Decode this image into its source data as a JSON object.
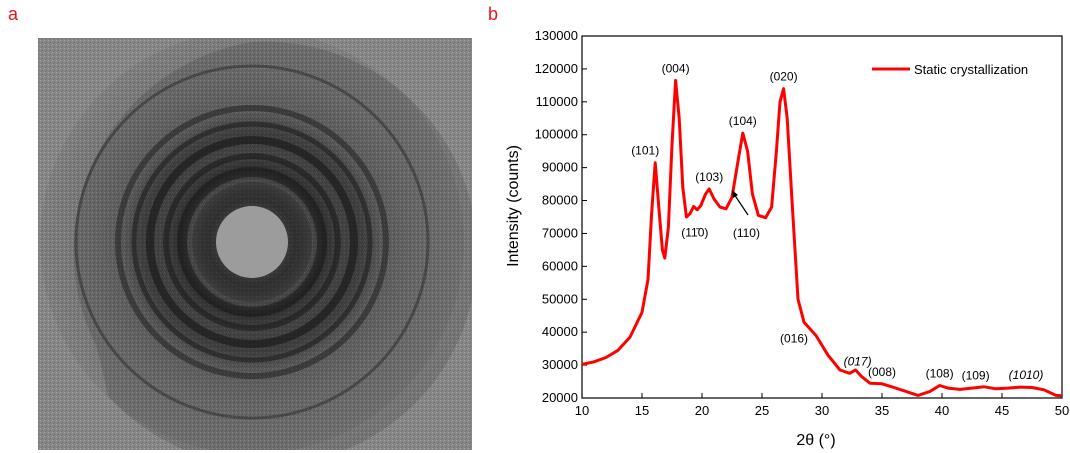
{
  "panels": {
    "a": "a",
    "b": "b"
  },
  "colors": {
    "accent": "#e8141c",
    "series": "#ff0000"
  },
  "chart_data": {
    "type": "line",
    "xlabel": "2θ (°)",
    "ylabel": "Intensity (counts)",
    "xlim": [
      10,
      50
    ],
    "ylim": [
      20000,
      130000
    ],
    "x_ticks": [
      10,
      15,
      20,
      25,
      30,
      35,
      40,
      45,
      50
    ],
    "y_ticks": [
      20000,
      30000,
      40000,
      50000,
      60000,
      70000,
      80000,
      90000,
      100000,
      110000,
      120000,
      130000
    ],
    "grid": false,
    "legend_position": "top-right",
    "series": [
      {
        "name": "Static crystallization",
        "points": [
          [
            10,
            30200
          ],
          [
            11,
            31000
          ],
          [
            12,
            32300
          ],
          [
            13,
            34500
          ],
          [
            14,
            38500
          ],
          [
            15,
            46000
          ],
          [
            15.5,
            56000
          ],
          [
            15.8,
            76000
          ],
          [
            16.1,
            91500
          ],
          [
            16.4,
            78000
          ],
          [
            16.7,
            65000
          ],
          [
            16.9,
            62500
          ],
          [
            17.2,
            72000
          ],
          [
            17.5,
            97000
          ],
          [
            17.8,
            116500
          ],
          [
            18.1,
            105000
          ],
          [
            18.4,
            84000
          ],
          [
            18.7,
            75000
          ],
          [
            19.0,
            76000
          ],
          [
            19.3,
            78200
          ],
          [
            19.6,
            77200
          ],
          [
            19.9,
            78500
          ],
          [
            20.3,
            82000
          ],
          [
            20.6,
            83500
          ],
          [
            21.0,
            80500
          ],
          [
            21.5,
            78000
          ],
          [
            22.0,
            77500
          ],
          [
            22.5,
            81000
          ],
          [
            23.0,
            92000
          ],
          [
            23.4,
            100500
          ],
          [
            23.8,
            95000
          ],
          [
            24.2,
            82000
          ],
          [
            24.7,
            75500
          ],
          [
            25.3,
            74800
          ],
          [
            25.8,
            78000
          ],
          [
            26.2,
            95000
          ],
          [
            26.5,
            110000
          ],
          [
            26.8,
            114000
          ],
          [
            27.1,
            105000
          ],
          [
            27.5,
            80000
          ],
          [
            28.0,
            50000
          ],
          [
            28.5,
            43000
          ],
          [
            29.5,
            39000
          ],
          [
            30.5,
            33000
          ],
          [
            31.5,
            28500
          ],
          [
            32.3,
            27500
          ],
          [
            32.8,
            28500
          ],
          [
            33.3,
            26500
          ],
          [
            34.0,
            24500
          ],
          [
            35.0,
            24300
          ],
          [
            36.0,
            23200
          ],
          [
            37.0,
            22000
          ],
          [
            38.0,
            20800
          ],
          [
            39.0,
            22000
          ],
          [
            39.8,
            23800
          ],
          [
            40.5,
            23000
          ],
          [
            41.5,
            22600
          ],
          [
            42.5,
            23000
          ],
          [
            43.5,
            23400
          ],
          [
            44.5,
            22800
          ],
          [
            45.5,
            23000
          ],
          [
            46.5,
            23300
          ],
          [
            47.5,
            23200
          ],
          [
            48.5,
            22500
          ],
          [
            49.5,
            20800
          ],
          [
            50,
            20700
          ]
        ]
      }
    ],
    "annotations": [
      {
        "text": "(101)",
        "x": 16.1,
        "y": 91500,
        "style": "normal"
      },
      {
        "text": "(004)",
        "x": 17.8,
        "y": 116500,
        "style": "normal"
      },
      {
        "text": "(103)",
        "x": 20.6,
        "y": 83500,
        "style": "normal"
      },
      {
        "text": "(11̄0)",
        "x": 19.4,
        "y": 74000,
        "style": "normal"
      },
      {
        "text": "(104)",
        "x": 23.4,
        "y": 100500,
        "style": "normal"
      },
      {
        "text": "(110)",
        "x": 22.2,
        "y": 77500,
        "style": "normal"
      },
      {
        "text": "(020)",
        "x": 26.8,
        "y": 114000,
        "style": "normal"
      },
      {
        "text": "(016)",
        "x": 28.5,
        "y": 43000,
        "style": "normal"
      },
      {
        "text": "(017)",
        "x": 32.3,
        "y": 27500,
        "style": "italic"
      },
      {
        "text": "(008)",
        "x": 35.0,
        "y": 24300,
        "style": "normal"
      },
      {
        "text": "(108)",
        "x": 39.8,
        "y": 23800,
        "style": "normal"
      },
      {
        "text": "(109)",
        "x": 42.8,
        "y": 23200,
        "style": "normal"
      },
      {
        "text": "(1010)",
        "x": 47.0,
        "y": 23300,
        "style": "italic"
      }
    ]
  }
}
